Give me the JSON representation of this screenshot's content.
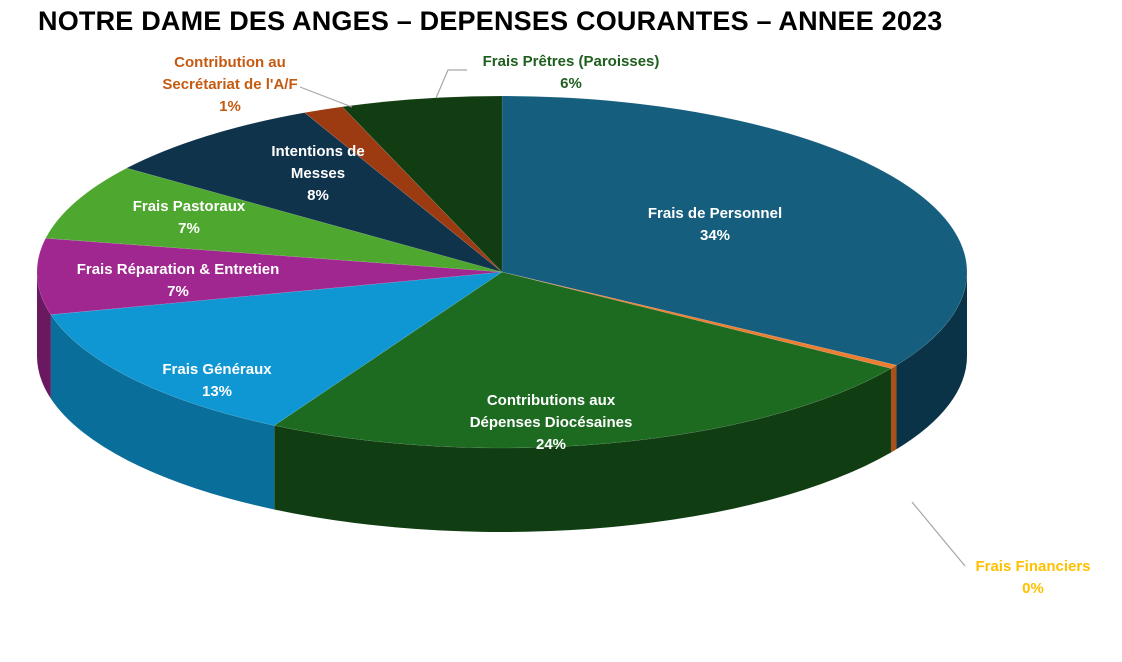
{
  "chart_data": {
    "type": "pie",
    "title": "NOTRE DAME DES ANGES – DEPENSES COURANTES – ANNEE 2023",
    "slices": [
      {
        "name_lines": [
          "Frais de Personnel"
        ],
        "value": 34,
        "label": "34%",
        "color": "#155e7e",
        "side_color": "#0b3347",
        "label_color": "#ffffff"
      },
      {
        "name_lines": [
          "Frais Financiers"
        ],
        "value": 0.35,
        "label": "0%",
        "color": "#ed7d31",
        "side_color": "#a8521a",
        "label_color": "#ffc000"
      },
      {
        "name_lines": [
          "Contributions aux",
          "Dépenses Diocésaines"
        ],
        "value": 24,
        "label": "24%",
        "color": "#1d6b21",
        "side_color": "#103d12",
        "label_color": "#ffffff"
      },
      {
        "name_lines": [
          "Frais Généraux"
        ],
        "value": 13,
        "label": "13%",
        "color": "#0e97d2",
        "side_color": "#0a6e9a",
        "label_color": "#ffffff"
      },
      {
        "name_lines": [
          "Frais Réparation & Entretien"
        ],
        "value": 7,
        "label": "7%",
        "color": "#a0278f",
        "side_color": "#6a1860",
        "label_color": "#ffffff"
      },
      {
        "name_lines": [
          "Frais Pastoraux"
        ],
        "value": 7,
        "label": "7%",
        "color": "#4ea72e",
        "side_color": "#33701e",
        "label_color": "#ffffff"
      },
      {
        "name_lines": [
          "Intentions de",
          "Messes"
        ],
        "value": 8,
        "label": "8%",
        "color": "#0e334b",
        "side_color": "#081f2e",
        "label_color": "#ffffff"
      },
      {
        "name_lines": [
          "Contribution au",
          "Secrétariat de l'A/F"
        ],
        "value": 1.4,
        "label": "1%",
        "color": "#9c3a12",
        "side_color": "#6a260b",
        "label_color": "#c55a11"
      },
      {
        "name_lines": [
          "Frais Prêtres (Paroisses)"
        ],
        "value": 5.6,
        "label": "6%",
        "color": "#123d12",
        "side_color": "#0b270b",
        "label_color": "#1e5e1e"
      }
    ],
    "start_angle_deg": -90,
    "direction": "clockwise",
    "style": "3d-exploded-none"
  }
}
